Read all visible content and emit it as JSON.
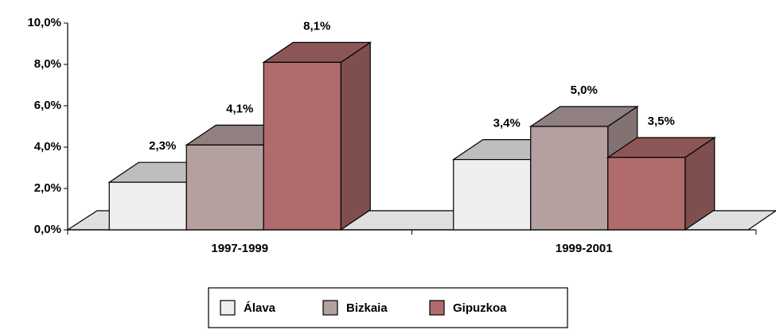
{
  "chart_data": {
    "type": "bar3d",
    "categories": [
      "1997-1999",
      "1999-2001"
    ],
    "series": [
      {
        "name": "Álava",
        "color": "#eeeeee",
        "values": [
          2.3,
          3.4
        ],
        "value_labels": [
          "2,3%",
          "3,4%"
        ]
      },
      {
        "name": "Bizkaia",
        "color": "#b4a09f",
        "values": [
          4.1,
          5.0
        ],
        "value_labels": [
          "4,1%",
          "5,0%"
        ]
      },
      {
        "name": "Gipuzkoa",
        "color": "#b06c6c",
        "values": [
          8.1,
          3.5
        ],
        "value_labels": [
          "8,1%",
          "3,5%"
        ]
      }
    ],
    "ylim": [
      0,
      10
    ],
    "yticks": [
      {
        "value": 0,
        "label": "0,0%"
      },
      {
        "value": 2,
        "label": "2,0%"
      },
      {
        "value": 4,
        "label": "4,0%"
      },
      {
        "value": 6,
        "label": "6,0%"
      },
      {
        "value": 8,
        "label": "8,0%"
      },
      {
        "value": 10,
        "label": "10,0%"
      }
    ],
    "legend": "bottom"
  }
}
